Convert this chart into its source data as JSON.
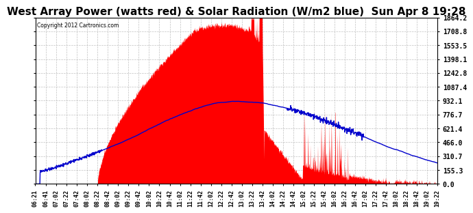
{
  "title": "West Array Power (watts red) & Solar Radiation (W/m2 blue)  Sun Apr 8 19:28",
  "copyright": "Copyright 2012 Cartronics.com",
  "yticks": [
    0.0,
    155.3,
    310.7,
    466.0,
    621.4,
    776.7,
    932.1,
    1087.4,
    1242.8,
    1398.1,
    1553.5,
    1708.8,
    1864.2
  ],
  "ymax": 1864.2,
  "ymin": 0.0,
  "bg_color": "#ffffff",
  "plot_bg_color": "#ffffff",
  "grid_color": "#b0b0b0",
  "red_color": "#ff0000",
  "blue_color": "#0000cc",
  "title_fontsize": 11,
  "xtick_labels": [
    "06:21",
    "06:41",
    "07:02",
    "07:22",
    "07:42",
    "08:02",
    "08:22",
    "08:42",
    "09:02",
    "09:22",
    "09:42",
    "10:02",
    "10:22",
    "10:42",
    "11:02",
    "11:22",
    "11:42",
    "12:02",
    "12:22",
    "12:42",
    "13:02",
    "13:22",
    "13:42",
    "14:02",
    "14:22",
    "14:42",
    "15:02",
    "15:22",
    "15:42",
    "16:02",
    "16:22",
    "16:42",
    "17:02",
    "17:22",
    "17:42",
    "18:02",
    "18:22",
    "18:42",
    "19:02",
    "19:22"
  ]
}
